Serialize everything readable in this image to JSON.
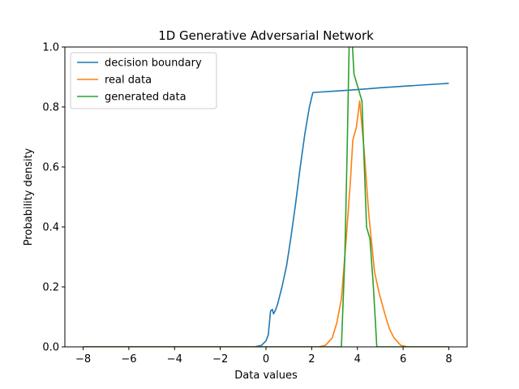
{
  "chart_data": {
    "type": "line",
    "title": "1D Generative Adversarial Network",
    "xlabel": "Data values",
    "ylabel": "Probability density",
    "xlim": [
      -8.8,
      8.8
    ],
    "ylim": [
      0,
      1.0
    ],
    "xticks": [
      -8,
      -6,
      -4,
      -2,
      0,
      2,
      4,
      6,
      8
    ],
    "xtick_labels": [
      "−8",
      "−6",
      "−4",
      "−2",
      "0",
      "2",
      "4",
      "6",
      "8"
    ],
    "yticks": [
      0.0,
      0.2,
      0.4,
      0.6,
      0.8,
      1.0
    ],
    "ytick_labels": [
      "0.0",
      "0.2",
      "0.4",
      "0.6",
      "0.8",
      "1.0"
    ],
    "grid": false,
    "legend_position": "top-left",
    "series": [
      {
        "name": "decision boundary",
        "color": "#1f77b4",
        "points": [
          [
            -8,
            0
          ],
          [
            -1,
            0
          ],
          [
            -0.5,
            0.0
          ],
          [
            -0.2,
            0.005
          ],
          [
            0.0,
            0.02
          ],
          [
            0.1,
            0.04
          ],
          [
            0.15,
            0.08
          ],
          [
            0.2,
            0.12
          ],
          [
            0.28,
            0.125
          ],
          [
            0.33,
            0.11
          ],
          [
            0.4,
            0.12
          ],
          [
            0.5,
            0.14
          ],
          [
            0.7,
            0.2
          ],
          [
            0.9,
            0.27
          ],
          [
            1.1,
            0.37
          ],
          [
            1.3,
            0.48
          ],
          [
            1.5,
            0.6
          ],
          [
            1.7,
            0.71
          ],
          [
            1.9,
            0.8
          ],
          [
            2.05,
            0.848
          ],
          [
            2.2,
            0.849
          ],
          [
            3,
            0.853
          ],
          [
            4,
            0.858
          ],
          [
            5,
            0.864
          ],
          [
            6,
            0.869
          ],
          [
            7,
            0.874
          ],
          [
            8,
            0.879
          ]
        ]
      },
      {
        "name": "real data",
        "color": "#ff7f0e",
        "points": [
          [
            -8,
            0
          ],
          [
            2.3,
            0
          ],
          [
            2.6,
            0.005
          ],
          [
            2.9,
            0.03
          ],
          [
            3.1,
            0.08
          ],
          [
            3.3,
            0.16
          ],
          [
            3.5,
            0.35
          ],
          [
            3.7,
            0.56
          ],
          [
            3.8,
            0.69
          ],
          [
            3.95,
            0.73
          ],
          [
            4.1,
            0.82
          ],
          [
            4.3,
            0.65
          ],
          [
            4.5,
            0.44
          ],
          [
            4.75,
            0.25
          ],
          [
            4.95,
            0.18
          ],
          [
            5.2,
            0.11
          ],
          [
            5.4,
            0.06
          ],
          [
            5.6,
            0.03
          ],
          [
            5.9,
            0.005
          ],
          [
            6.2,
            0
          ],
          [
            8,
            0
          ]
        ]
      },
      {
        "name": "generated data",
        "color": "#2ca02c",
        "points": [
          [
            -8,
            0
          ],
          [
            3.3,
            0
          ],
          [
            3.45,
            0.3
          ],
          [
            3.55,
            0.65
          ],
          [
            3.65,
            1.05
          ],
          [
            3.75,
            1.05
          ],
          [
            3.85,
            0.91
          ],
          [
            4.2,
            0.82
          ],
          [
            4.4,
            0.4
          ],
          [
            4.55,
            0.36
          ],
          [
            4.7,
            0.2
          ],
          [
            4.85,
            0.0
          ],
          [
            8,
            0
          ]
        ]
      }
    ]
  }
}
